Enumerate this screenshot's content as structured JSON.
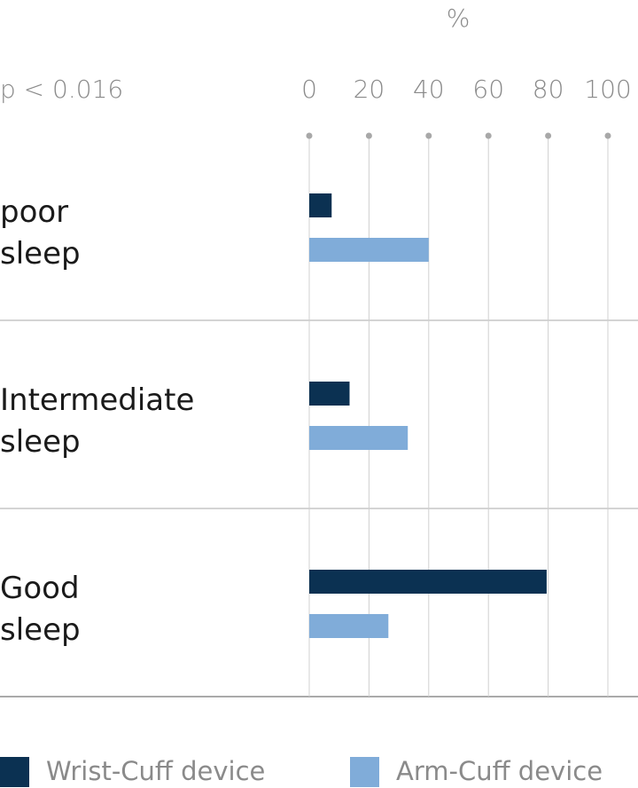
{
  "chart_data": {
    "type": "bar",
    "orientation": "horizontal",
    "x_label": "%",
    "annotation": "p < 0.016",
    "categories": [
      "poor sleep",
      "Intermediate sleep",
      "Good sleep"
    ],
    "series": [
      {
        "name": "Wrist-Cuff device",
        "color": "#0b3152",
        "values": [
          7.5,
          13.5,
          79.5
        ]
      },
      {
        "name": "Arm-Cuff device",
        "color": "#80acd9",
        "values": [
          40,
          33,
          26.5
        ]
      }
    ],
    "xlim": [
      0,
      100
    ],
    "xticks": [
      0,
      20,
      40,
      60,
      80,
      100
    ],
    "grid": true
  }
}
